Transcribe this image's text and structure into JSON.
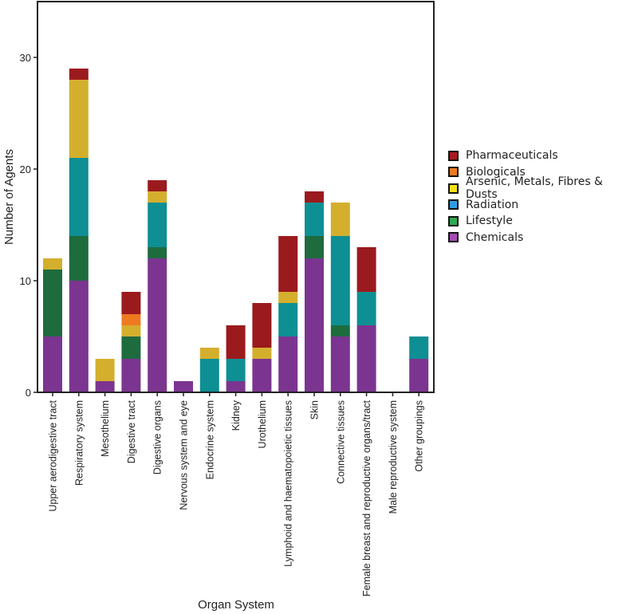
{
  "chart_data": {
    "type": "bar",
    "stacked": true,
    "title": "",
    "xlabel": "Organ System",
    "ylabel": "Number of Agents",
    "ylim": [
      0,
      35
    ],
    "yticks": [
      0,
      10,
      20,
      30
    ],
    "grid": false,
    "legend_position": "right",
    "categories": [
      "Upper aerodigestive tract",
      "Respiratory system",
      "Mesothelium",
      "Digestive tract",
      "Digestive organs",
      "Nervous system and eye",
      "Endocrine system",
      "Kidney",
      "Urothelium",
      "Lymphoid and haematopoietic tissues",
      "Skin",
      "Connective tissues",
      "Female breast and reproductive organs/tract",
      "Male reproductive system",
      "Other groupings"
    ],
    "series": [
      {
        "name": "Chemicals",
        "color": "#7b3590",
        "legend_color": "#a64cb5",
        "values": [
          5,
          10,
          1,
          3,
          12,
          1,
          0,
          1,
          3,
          5,
          12,
          5,
          6,
          0,
          3
        ]
      },
      {
        "name": "Lifestyle",
        "color": "#1e6b3e",
        "legend_color": "#2eaa4f",
        "values": [
          6,
          4,
          0,
          2,
          1,
          0,
          0,
          0,
          0,
          0,
          2,
          1,
          0,
          0,
          0
        ]
      },
      {
        "name": "Radiation",
        "color": "#0e8f93",
        "legend_color": "#2f9be0",
        "values": [
          0,
          7,
          0,
          0,
          4,
          0,
          3,
          2,
          0,
          3,
          3,
          8,
          3,
          0,
          2
        ]
      },
      {
        "name": "Arsenic, Metals, Fibres & Dusts",
        "color": "#d4af2e",
        "legend_color": "#f4e01a",
        "values": [
          1,
          7,
          2,
          1,
          1,
          0,
          1,
          0,
          1,
          1,
          0,
          3,
          0,
          0,
          0
        ]
      },
      {
        "name": "Biologicals",
        "color": "#ee7a22",
        "legend_color": "#ee7a22",
        "values": [
          0,
          0,
          0,
          1,
          0,
          0,
          0,
          0,
          0,
          0,
          0,
          0,
          0,
          0,
          0
        ]
      },
      {
        "name": "Pharmaceuticals",
        "color": "#9b1a1e",
        "legend_color": "#a8191f",
        "values": [
          0,
          1,
          0,
          2,
          1,
          0,
          0,
          3,
          4,
          5,
          1,
          0,
          4,
          0,
          0
        ]
      }
    ],
    "legend_order": [
      "Pharmaceuticals",
      "Biologicals",
      "Arsenic, Metals, Fibres & Dusts",
      "Radiation",
      "Lifestyle",
      "Chemicals"
    ]
  }
}
